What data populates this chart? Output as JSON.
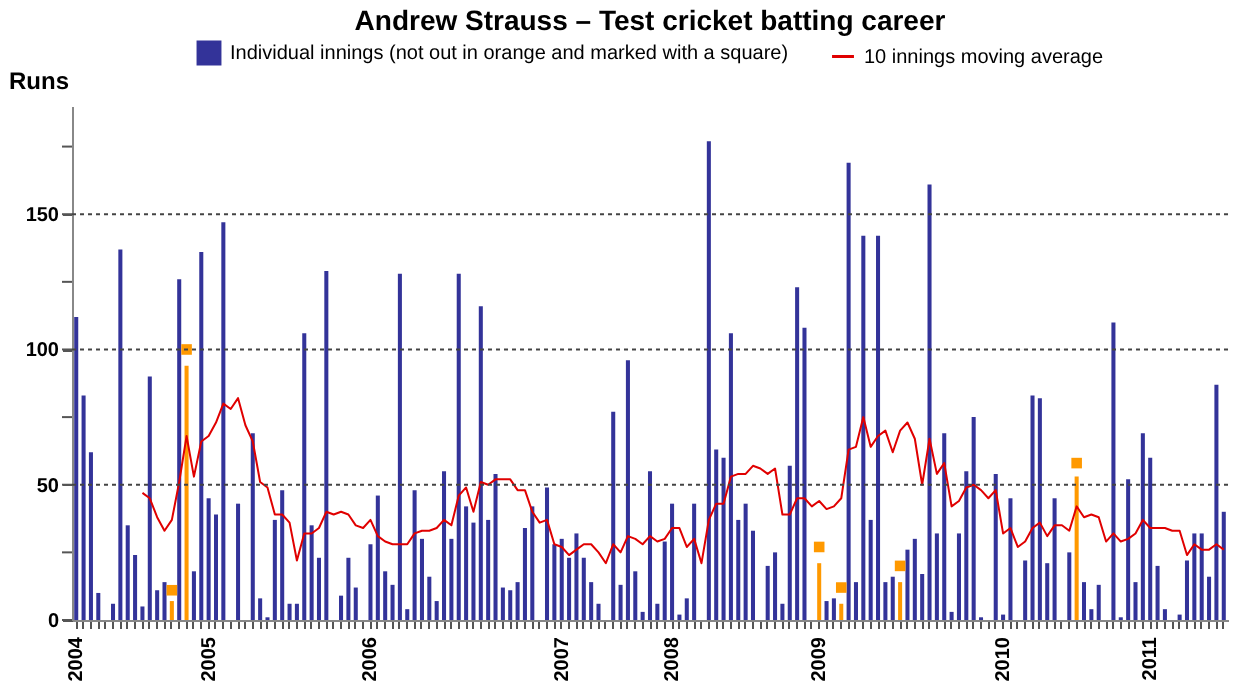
{
  "chart_data": {
    "type": "bar",
    "title": "Andrew Strauss – Test cricket batting career",
    "ylabel": "Runs",
    "categories": [
      "2004",
      null,
      null,
      null,
      null,
      null,
      null,
      null,
      null,
      null,
      null,
      null,
      null,
      null,
      null,
      null,
      null,
      null,
      "2005",
      null,
      null,
      null,
      null,
      null,
      null,
      null,
      null,
      null,
      null,
      null,
      null,
      null,
      null,
      null,
      null,
      null,
      null,
      null,
      null,
      null,
      "2006",
      null,
      null,
      null,
      null,
      null,
      null,
      null,
      null,
      null,
      null,
      null,
      null,
      null,
      null,
      null,
      null,
      null,
      null,
      null,
      null,
      null,
      null,
      null,
      null,
      null,
      "2007",
      null,
      null,
      null,
      null,
      null,
      null,
      null,
      null,
      null,
      null,
      null,
      null,
      null,
      null,
      "2008",
      null,
      null,
      null,
      null,
      null,
      null,
      null,
      null,
      null,
      null,
      null,
      null,
      null,
      null,
      null,
      null,
      null,
      null,
      null,
      "2009",
      null,
      null,
      null,
      null,
      null,
      null,
      null,
      null,
      null,
      null,
      null,
      null,
      null,
      null,
      null,
      null,
      null,
      null,
      null,
      null,
      null,
      null,
      null,
      null,
      "2010",
      null,
      null,
      null,
      null,
      null,
      null,
      null,
      null,
      null,
      null,
      null,
      null,
      null,
      null,
      null,
      null,
      null,
      null,
      null,
      "2011",
      null,
      null,
      null,
      null,
      null,
      null,
      null,
      null,
      null,
      null
    ],
    "series": [
      {
        "name": "Individual innings (not out in orange and marked with a square)",
        "color": "#333399",
        "colors": [
          "#333399",
          "#333399",
          "#333399",
          "#333399",
          "#333399",
          "#333399",
          "#333399",
          "#333399",
          "#333399",
          "#333399",
          "#333399",
          "#333399",
          "#333399",
          "#ff9900",
          "#333399",
          "#ff9900",
          "#333399",
          "#333399",
          "#333399",
          "#333399",
          "#333399",
          "#333399",
          "#333399",
          "#333399",
          "#333399",
          "#333399",
          "#333399",
          "#333399",
          "#333399",
          "#333399",
          "#333399",
          "#333399",
          "#333399",
          "#333399",
          "#333399",
          "#333399",
          "#333399",
          "#333399",
          "#333399",
          "#333399",
          "#333399",
          "#333399",
          "#333399",
          "#333399",
          "#333399",
          "#333399",
          "#333399",
          "#333399",
          "#333399",
          "#333399",
          "#333399",
          "#333399",
          "#333399",
          "#333399",
          "#333399",
          "#333399",
          "#333399",
          "#333399",
          "#333399",
          "#333399",
          "#333399",
          "#333399",
          "#333399",
          "#333399",
          "#333399",
          "#333399",
          "#333399",
          "#333399",
          "#333399",
          "#333399",
          "#333399",
          "#333399",
          "#333399",
          "#333399",
          "#333399",
          "#333399",
          "#333399",
          "#333399",
          "#333399",
          "#333399",
          "#333399",
          "#333399",
          "#333399",
          "#333399",
          "#333399",
          "#333399",
          "#333399",
          "#333399",
          "#333399",
          "#333399",
          "#333399",
          "#333399",
          "#333399",
          "#333399",
          "#333399",
          "#333399",
          "#333399",
          "#333399",
          "#333399",
          "#333399",
          "#333399",
          "#ff9900",
          "#333399",
          "#333399",
          "#ff9900",
          "#333399",
          "#333399",
          "#333399",
          "#333399",
          "#333399",
          "#333399",
          "#333399",
          "#ff9900",
          "#333399",
          "#333399",
          "#333399",
          "#333399",
          "#333399",
          "#333399",
          "#333399",
          "#333399",
          "#333399",
          "#333399",
          "#333399",
          "#333399",
          "#333399",
          "#333399",
          "#333399",
          "#333399",
          "#333399",
          "#333399",
          "#333399",
          "#333399",
          "#333399",
          "#333399",
          "#333399",
          "#ff9900",
          "#333399",
          "#333399",
          "#333399",
          "#333399",
          "#333399",
          "#333399",
          "#333399",
          "#333399",
          "#333399",
          "#333399",
          "#333399",
          "#333399",
          "#333399",
          "#333399",
          "#333399",
          "#333399",
          "#333399",
          "#333399",
          "#333399",
          "#333399"
        ],
        "values": [
          112,
          83,
          62,
          10,
          0,
          6,
          137,
          35,
          24,
          5,
          90,
          11,
          14,
          7,
          126,
          94,
          18,
          136,
          45,
          39,
          147,
          0,
          43,
          0,
          69,
          8,
          1,
          37,
          48,
          6,
          6,
          106,
          35,
          23,
          129,
          0,
          9,
          23,
          12,
          0,
          28,
          46,
          18,
          13,
          128,
          4,
          48,
          30,
          16,
          7,
          55,
          30,
          128,
          42,
          36,
          116,
          37,
          54,
          12,
          11,
          14,
          34,
          42,
          0,
          49,
          28,
          30,
          23,
          32,
          23,
          14,
          6,
          0,
          77,
          13,
          96,
          18,
          3,
          55,
          6,
          29,
          43,
          2,
          8,
          43,
          0,
          177,
          63,
          60,
          106,
          37,
          43,
          33,
          0,
          20,
          25,
          6,
          57,
          123,
          108,
          0,
          21,
          7,
          8,
          6,
          169,
          14,
          142,
          37,
          142,
          14,
          16,
          14,
          26,
          30,
          17,
          161,
          32,
          69,
          3,
          32,
          55,
          75,
          1,
          0,
          54,
          2,
          45,
          0,
          22,
          83,
          82,
          21,
          45,
          0,
          25,
          53,
          14,
          4,
          13,
          0,
          110,
          1,
          52,
          14,
          69,
          60,
          20,
          4,
          0,
          2,
          22,
          32,
          32,
          16,
          87,
          40
        ]
      },
      {
        "type": "scatter",
        "marker": "square",
        "color": "#ff9900",
        "values": [
          null,
          null,
          null,
          null,
          null,
          null,
          null,
          null,
          null,
          null,
          null,
          null,
          null,
          11,
          null,
          100,
          null,
          null,
          null,
          null,
          null,
          null,
          null,
          null,
          null,
          null,
          null,
          null,
          null,
          null,
          null,
          null,
          null,
          null,
          null,
          null,
          null,
          null,
          null,
          null,
          null,
          null,
          null,
          null,
          null,
          null,
          null,
          null,
          null,
          null,
          null,
          null,
          null,
          null,
          null,
          null,
          null,
          null,
          null,
          null,
          null,
          null,
          null,
          null,
          null,
          null,
          null,
          null,
          null,
          null,
          null,
          null,
          null,
          null,
          null,
          null,
          null,
          null,
          null,
          null,
          null,
          null,
          null,
          null,
          null,
          null,
          null,
          null,
          null,
          null,
          null,
          null,
          null,
          null,
          null,
          null,
          null,
          null,
          null,
          null,
          null,
          27,
          null,
          null,
          12,
          null,
          null,
          null,
          null,
          null,
          null,
          null,
          20,
          null,
          null,
          null,
          null,
          null,
          null,
          null,
          null,
          null,
          null,
          null,
          null,
          null,
          null,
          null,
          null,
          null,
          null,
          null,
          null,
          null,
          null,
          null,
          58,
          null,
          null,
          null,
          null,
          null,
          null,
          null,
          null,
          null,
          null,
          null,
          null,
          null,
          null,
          null,
          null,
          null,
          null,
          null,
          null
        ]
      },
      {
        "name": "10 innings moving average",
        "type": "line",
        "color": "#e00000",
        "line_style": "solid",
        "values": [
          null,
          null,
          null,
          null,
          null,
          null,
          null,
          null,
          null,
          47,
          45,
          38,
          33,
          37,
          51,
          68,
          53,
          66,
          68,
          73,
          80,
          78,
          82,
          72,
          66,
          51,
          49,
          39,
          39,
          36,
          22,
          32,
          32,
          34,
          40,
          39,
          40,
          39,
          35,
          34,
          37,
          31,
          29,
          28,
          28,
          28,
          32,
          33,
          33,
          34,
          37,
          35,
          46,
          49,
          40,
          51,
          50,
          52,
          52,
          52,
          48,
          48,
          40,
          36,
          37,
          28,
          27,
          24,
          26,
          28,
          28,
          25,
          21,
          28,
          25,
          31,
          30,
          28,
          31,
          29,
          30,
          34,
          34,
          27,
          30,
          21,
          37,
          43,
          43,
          53,
          54,
          54,
          57,
          56,
          54,
          56,
          39,
          39,
          45,
          45,
          42,
          44,
          41,
          42,
          45,
          63,
          64,
          75,
          64,
          68,
          70,
          62,
          70,
          73,
          67,
          50,
          67,
          54,
          58,
          42,
          44,
          49,
          50,
          48,
          45,
          48,
          32,
          34,
          27,
          29,
          34,
          36,
          31,
          35,
          35,
          33,
          42,
          38,
          39,
          38,
          29,
          32,
          29,
          30,
          32,
          37,
          34,
          34,
          34,
          33,
          33,
          24,
          28,
          26,
          26,
          28,
          26
        ]
      }
    ],
    "ylim": [
      0,
      190
    ],
    "yticks": [
      0,
      {
        "value": 25,
        "label": null
      },
      50,
      {
        "value": 75,
        "label": null
      },
      100,
      {
        "value": 125,
        "label": null
      },
      150,
      {
        "value": 175,
        "label": null
      }
    ],
    "grid": "y",
    "legend": "top"
  }
}
